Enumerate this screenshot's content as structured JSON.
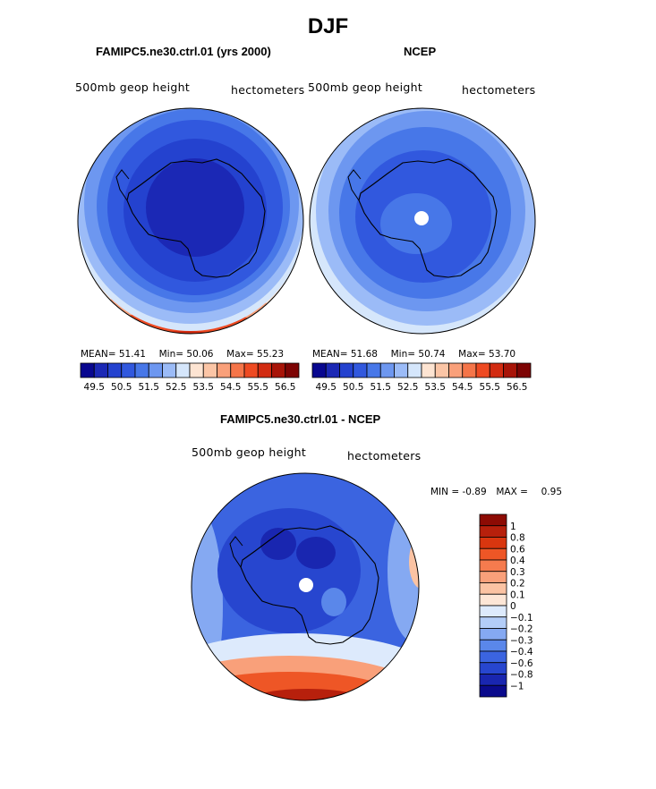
{
  "figure_title": "DJF",
  "chart_data": [
    {
      "type": "heatmap",
      "projection": "south-polar-stereographic",
      "title": "FAMIPC5.ne30.ctrl.01 (yrs 2000)",
      "variable_label": "500mb geop height",
      "units_label": "hectometers",
      "stats": {
        "mean_label": "MEAN=",
        "mean": "51.41",
        "min_label": "Min=",
        "min": "50.06",
        "max_label": "Max=",
        "max": "55.23"
      },
      "colorbar": {
        "orientation": "horizontal",
        "tick_labels": [
          "49.5",
          "50.5",
          "51.5",
          "52.5",
          "53.5",
          "54.5",
          "55.5",
          "56.5"
        ],
        "colors": [
          "#08078f",
          "#1b28b5",
          "#2442cf",
          "#3158de",
          "#4777e8",
          "#6d97f0",
          "#9bbbf7",
          "#d5e6fb",
          "#fde4d2",
          "#fbc5a6",
          "#f9a07a",
          "#f57549",
          "#ee4a22",
          "#d22b11",
          "#a81408",
          "#7d0404"
        ]
      }
    },
    {
      "type": "heatmap",
      "projection": "south-polar-stereographic",
      "title": "NCEP",
      "variable_label": "500mb geop height",
      "units_label": "hectometers",
      "stats": {
        "mean_label": "MEAN=",
        "mean": "51.68",
        "min_label": "Min=",
        "min": "50.74",
        "max_label": "Max=",
        "max": "53.70"
      },
      "colorbar": {
        "orientation": "horizontal",
        "tick_labels": [
          "49.5",
          "50.5",
          "51.5",
          "52.5",
          "53.5",
          "54.5",
          "55.5",
          "56.5"
        ],
        "colors": [
          "#08078f",
          "#1b28b5",
          "#2442cf",
          "#3158de",
          "#4777e8",
          "#6d97f0",
          "#9bbbf7",
          "#d5e6fb",
          "#fde4d2",
          "#fbc5a6",
          "#f9a07a",
          "#f57549",
          "#ee4a22",
          "#d22b11",
          "#a81408",
          "#7d0404"
        ]
      }
    },
    {
      "type": "heatmap",
      "projection": "south-polar-stereographic",
      "title": "FAMIPC5.ne30.ctrl.01 - NCEP",
      "variable_label": "500mb geop height",
      "units_label": "hectometers",
      "stats": {
        "min_label": "MIN =",
        "min": "-0.89",
        "max_label": "MAX =",
        "max": "0.95"
      },
      "colorbar": {
        "orientation": "vertical",
        "tick_labels": [
          "1",
          "0.8",
          "0.6",
          "0.4",
          "0.3",
          "0.2",
          "0.1",
          "0",
          "−0.1",
          "−0.2",
          "−0.3",
          "−0.4",
          "−0.6",
          "−0.8",
          "−1"
        ],
        "colors": [
          "#8d0b04",
          "#b7200c",
          "#d9360f",
          "#ee5626",
          "#f57b4e",
          "#f9a07a",
          "#fbc3a3",
          "#fde6d6",
          "#ddeafc",
          "#b3cdf8",
          "#85a9f2",
          "#5a87ea",
          "#3b64e0",
          "#2746cf",
          "#1926b0",
          "#0a0a8c"
        ]
      }
    }
  ]
}
